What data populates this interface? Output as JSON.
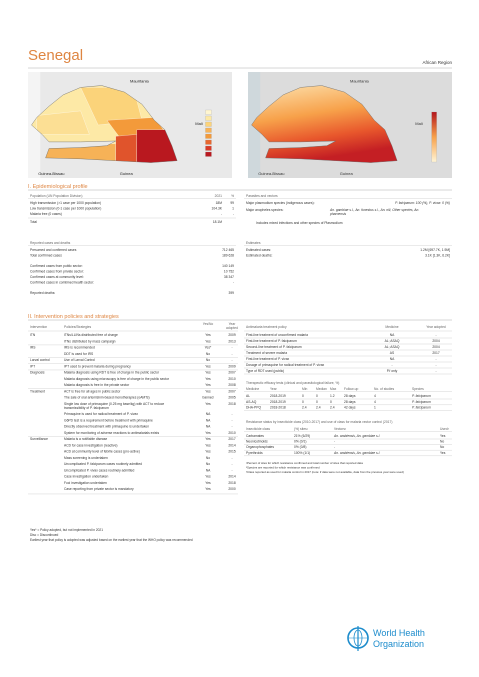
{
  "header": {
    "title": "Senegal",
    "region": "African Region"
  },
  "maps": [
    {
      "labels": [
        "Mauritania",
        "Mali",
        "Guinea-Bissau",
        "Guinea"
      ]
    },
    {
      "labels": [
        "Mauritania",
        "Mali",
        "Guinea-Bissau",
        "Guinea"
      ]
    }
  ],
  "epidemiological_profile": {
    "title": "I. Epidemiological profile",
    "population": {
      "title": "Population (UN Population Division)",
      "columns": [
        "2021",
        "%"
      ],
      "rows": [
        [
          "High transmission (>1 case per 1000 population)",
          "18M",
          "99"
        ],
        [
          "Low transmission (0-1 case per 1000 population)",
          "104.3K",
          "1"
        ],
        [
          "Malaria free (0 cases)",
          "-",
          "-"
        ]
      ],
      "total": [
        "Total",
        "18.1M"
      ]
    },
    "parasites_vectors": {
      "title": "Parasites and vectors",
      "rows": [
        [
          "Major plasmodium species (indigenous cases):",
          "P. falciparum: 100 (%), P. vivax: 0 (%)"
        ],
        [
          "Major anopheles species:",
          "An. gambiae s.l., An. funestus s.l., An. nili, Other species, An. pharoensis"
        ]
      ],
      "note": "Includes mixed infections and other species of Plasmodium"
    },
    "reported": {
      "title": "Reported cases and deaths",
      "rows": [
        [
          "Presumed and confirmed cases",
          "712 465"
        ],
        [
          "Total confirmed cases",
          "189 628"
        ],
        [
          "Confirmed cases from public sector:",
          "140 149"
        ],
        [
          "Confirmed cases from private sector:",
          "10 752"
        ],
        [
          "Confirmed cases at community level:",
          "38 347"
        ],
        [
          "Confirmed cases in combined health sector:",
          "-"
        ],
        [
          "Reported deaths:",
          "399"
        ]
      ]
    },
    "estimates": {
      "title": "Estimates",
      "rows": [
        [
          "Estimated cases:",
          "1.2M [697.7K, 1.9M]"
        ],
        [
          "Estimated deaths:",
          "3.1K [1.3K, 6.2K]"
        ]
      ]
    }
  },
  "interventions": {
    "title": "II. Intervention policies and strategies",
    "table": {
      "columns": [
        "Intervention",
        "Policies/Strategies",
        "Yes/No",
        "Year adopted"
      ],
      "rows": [
        [
          "ITN",
          "ITNs/LLINs distributed free of charge",
          "Yes",
          "2009"
        ],
        [
          null,
          "ITNs distributed by mass campaign",
          "Yes",
          "2013"
        ],
        [
          "IRS",
          "IRS is recommended",
          "Yes*",
          "-"
        ],
        [
          null,
          "DDT is used for IRS",
          "No",
          "-"
        ],
        [
          "Larval control",
          "Use of Larval Control",
          "No",
          "-"
        ],
        [
          "IPT",
          "IPT used to prevent malaria during pregnancy",
          "Yes",
          "2009"
        ],
        [
          "Diagnosis",
          "Malaria diagnosis using RDT is free of charge in the public sector",
          "Yes",
          "2007"
        ],
        [
          null,
          "Malaria diagnosis using microscopy is free of charge in the public sector",
          "Yes",
          "2010"
        ],
        [
          null,
          "Malaria diagnosis is free in the private sector",
          "Yes",
          "2008"
        ],
        [
          "Treatment",
          "ACT is free for all ages in public sector",
          "Yes",
          "2007"
        ],
        [
          null,
          "The sale of oral artemisinin-based monotherapies (oAMTs)",
          "banned",
          "2005"
        ],
        [
          null,
          "Single low dose of primaquine (0.25 mg base/kg) with ACT to reduce transmissibility of P. falciparum",
          "Yes",
          "2018"
        ],
        [
          null,
          "Primaquine is used for radical treatment of P. vivax",
          "NA",
          "-"
        ],
        [
          null,
          "G6PD test is a requirement before treatment with primaquine",
          "NA",
          "-"
        ],
        [
          null,
          "Directly observed treatment with primaquine is undertaken",
          "NA",
          "-"
        ],
        [
          null,
          "System for monitoring of adverse reactions to antimalarials exists",
          "Yes",
          "2010"
        ],
        [
          "Surveillance",
          "Malaria is a notifiable disease",
          "Yes",
          "2017"
        ],
        [
          null,
          "ACD for case investigation (reactive)",
          "Yes",
          "2014"
        ],
        [
          null,
          "ACD at community level of febrile cases (pro-active)",
          "Yes",
          "2015"
        ],
        [
          null,
          "Mass screening is undertaken",
          "No",
          "-"
        ],
        [
          null,
          "Uncomplicated P. falciparum cases routinely admitted",
          "No",
          "-"
        ],
        [
          null,
          "Uncomplicated P. vivax cases routinely admitted",
          "NA",
          "-"
        ],
        [
          null,
          "Case investigation undertaken",
          "Yes",
          "2014"
        ],
        [
          null,
          "Foci investigation undertaken",
          "Yes",
          "2018"
        ],
        [
          null,
          "Case reporting from private sector is mandatory",
          "Yes",
          "2000"
        ]
      ]
    },
    "notes": [
      "Yes* = Policy adopted, but not implemented in 2021",
      "Disc = Discontinued",
      "Earliest year that policy is adopted was adjusted based on the earliest year that the WHO policy was recommended"
    ]
  },
  "treatment_policy": {
    "columns": [
      "Antimalaria treatment policy",
      "Medicine",
      "Year adopted"
    ],
    "rows": [
      [
        "First-line treatment of unconfirmed malaria",
        "NA",
        "-"
      ],
      [
        "First-line treatment of P. falciparum",
        "AL; ASAQ",
        "2004"
      ],
      [
        "Second-line treatment of P. falciparum",
        "AL; ASAQ",
        "2004"
      ],
      [
        "Treatment of severe malaria",
        "AS",
        "2017"
      ],
      [
        "First-line treatment of P. vivax",
        "NA",
        "-"
      ],
      [
        "Dosage of primaquine for radical treatment of P. vivax",
        "-",
        "-"
      ],
      [
        "Type of RDT used (public)",
        "P.f only",
        "-"
      ]
    ]
  },
  "efficacy": {
    "title": "Therapeutic efficacy tests (clinical and parasitological failure, %)",
    "columns": [
      "Medicine",
      "Year",
      "Min",
      "Median",
      "Max",
      "Follow-up",
      "No. of studies",
      "Species"
    ],
    "rows": [
      [
        "AL",
        "2018-2019",
        "0",
        "0",
        "1.2",
        "28 days",
        "4",
        "P. falciparum"
      ],
      [
        "AS-AQ",
        "2018-2019",
        "0",
        "0",
        "0",
        "28 days",
        "4",
        "P. falciparum"
      ],
      [
        "DHA-PPQ",
        "2018-2018",
        "2.4",
        "2.4",
        "2.4",
        "42 days",
        "1",
        "P. falciparum"
      ]
    ]
  },
  "resistance": {
    "title": "Resistance status by insecticide class (2010-2017) and use of class for malaria vector control (2017)",
    "columns": [
      "Insecticide class",
      "(%) sites¹",
      "Vectors²",
      "Used³"
    ],
    "rows": [
      [
        "Carbamates",
        "21% (6/29)",
        "An. arabiensis, An. gambiae s.l.",
        "Yes"
      ],
      [
        "Neonicotinoids",
        "0% (0/1)",
        "-",
        "No"
      ],
      [
        "Organophosphates",
        "0% (0/8)",
        "-",
        "No"
      ],
      [
        "Pyrethroids",
        "100% (1/1)",
        "An. arabiensis, An. gambiae s.l.",
        "Yes"
      ]
    ],
    "footnotes": [
      "¹Percent of sites for which resistance confirmed and total number of sites that reported data",
      "²Species are reported for which resistance was confirmed",
      "³Class reported as used for malaria control in 2017 (note: if data were not available, data from the previous year were used)"
    ]
  },
  "logo": {
    "lines": [
      "World Health",
      "Organization"
    ]
  }
}
